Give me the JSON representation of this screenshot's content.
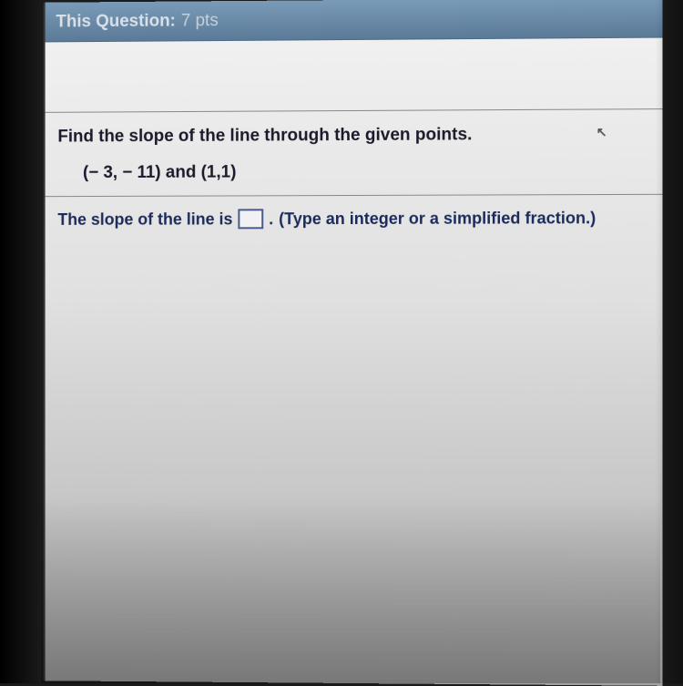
{
  "header": {
    "label": "This Question:",
    "points": "7 pts"
  },
  "question": {
    "prompt": "Find the slope of the line through the given points.",
    "given_points": "(− 3, − 11) and (1,1)"
  },
  "answer": {
    "prefix": "The slope of the line is",
    "period": ".",
    "hint": "(Type an integer or a simplified fraction.)"
  },
  "styling": {
    "header_bg_top": "#7a9bb8",
    "header_bg_bottom": "#5a7a98",
    "header_text_color": "#d8e0e8",
    "content_bg": "#e8e8e8",
    "question_text_color": "#1a1a2a",
    "answer_text_color": "#1a2a5a",
    "input_border_color": "#4a5a8a",
    "divider_color": "#888888",
    "font_family": "Arial",
    "header_fontsize": 19,
    "question_fontsize": 19,
    "answer_fontsize": 18
  }
}
